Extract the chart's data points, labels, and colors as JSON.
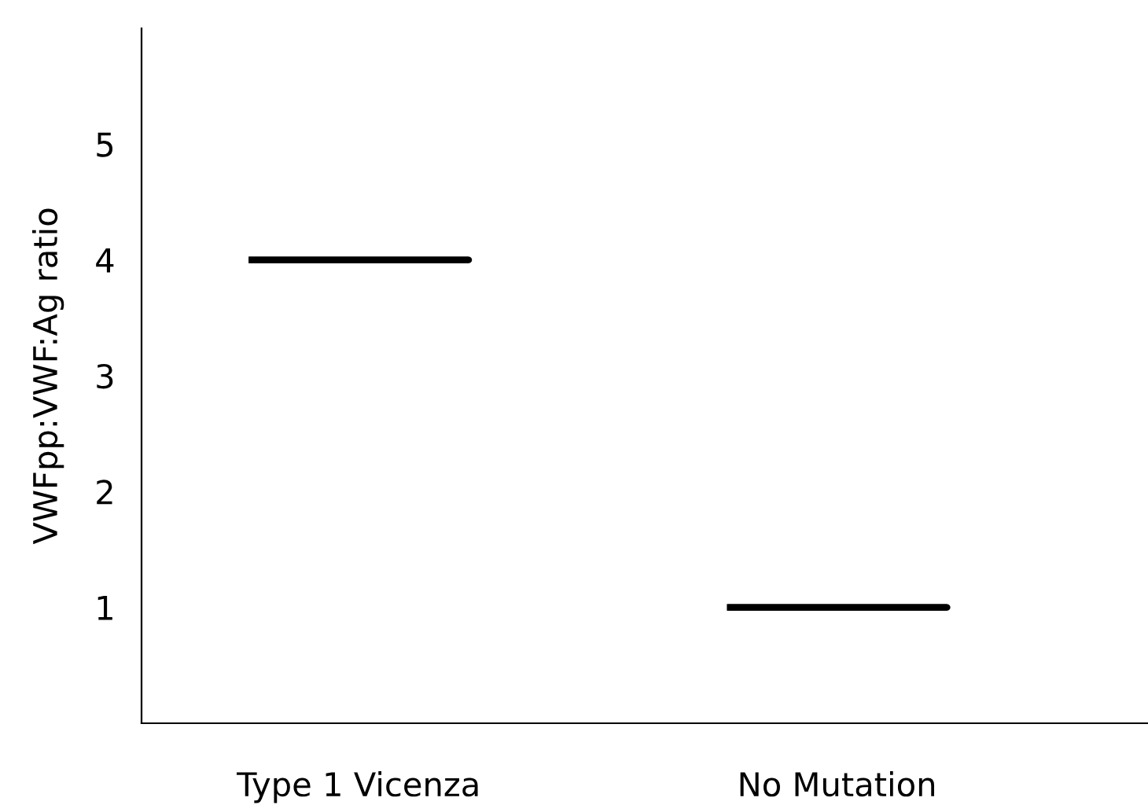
{
  "chart_data": {
    "type": "box",
    "ylabel": "VWFpp:VWF:Ag ratio",
    "categories": [
      "Type 1 Vicenza",
      "No Mutation"
    ],
    "boxes": [
      {
        "low": 4,
        "q1": 4,
        "median": 4,
        "q3": 4,
        "high": 4
      },
      {
        "low": 1,
        "q1": 1,
        "median": 1,
        "q3": 1,
        "high": 1
      }
    ],
    "color": "#000000",
    "ylim": [
      0,
      6
    ],
    "yticks": [
      1,
      2,
      3,
      4,
      5
    ],
    "grid": false,
    "legend": false
  }
}
